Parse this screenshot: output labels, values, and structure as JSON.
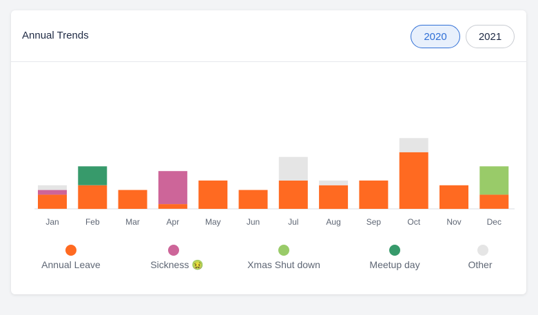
{
  "card": {
    "title": "Annual Trends"
  },
  "year_selector": {
    "options": [
      "2020",
      "2021"
    ],
    "selected": "2020"
  },
  "colors": {
    "annual_leave": "#ff6a21",
    "sickness": "#cd6599",
    "xmas": "#99cb69",
    "meetup": "#379a6b",
    "other": "#e5e5e5"
  },
  "chart_data": {
    "type": "bar",
    "stacked": true,
    "categories": [
      "Jan",
      "Feb",
      "Mar",
      "Apr",
      "May",
      "Jun",
      "Jul",
      "Aug",
      "Sep",
      "Oct",
      "Nov",
      "Dec"
    ],
    "series": [
      {
        "name": "Annual Leave",
        "color": "#ff6a21",
        "values": [
          3,
          5,
          4,
          1,
          6,
          4,
          6,
          5,
          6,
          12,
          5,
          3
        ]
      },
      {
        "name": "Sickness",
        "color": "#cd6599",
        "values": [
          1,
          0,
          0,
          7,
          0,
          0,
          0,
          0,
          0,
          0,
          0,
          0
        ]
      },
      {
        "name": "Xmas Shut down",
        "color": "#99cb69",
        "values": [
          0,
          0,
          0,
          0,
          0,
          0,
          0,
          0,
          0,
          0,
          0,
          6
        ]
      },
      {
        "name": "Meetup day",
        "color": "#379a6b",
        "values": [
          0,
          4,
          0,
          0,
          0,
          0,
          0,
          0,
          0,
          0,
          0,
          0
        ]
      },
      {
        "name": "Other",
        "color": "#e5e5e5",
        "values": [
          1,
          0,
          0,
          0,
          0,
          0,
          5,
          1,
          0,
          3,
          0,
          0
        ]
      }
    ],
    "ylim": [
      0,
      15
    ],
    "grid": false,
    "legend": "bottom"
  },
  "legend": [
    {
      "label": "Annual Leave",
      "color": "#ff6a21"
    },
    {
      "label": "Sickness",
      "emoji": "🤢",
      "color": "#cd6599"
    },
    {
      "label": "Xmas Shut down",
      "color": "#99cb69"
    },
    {
      "label": "Meetup day",
      "color": "#379a6b"
    },
    {
      "label": "Other",
      "color": "#e5e5e5"
    }
  ]
}
